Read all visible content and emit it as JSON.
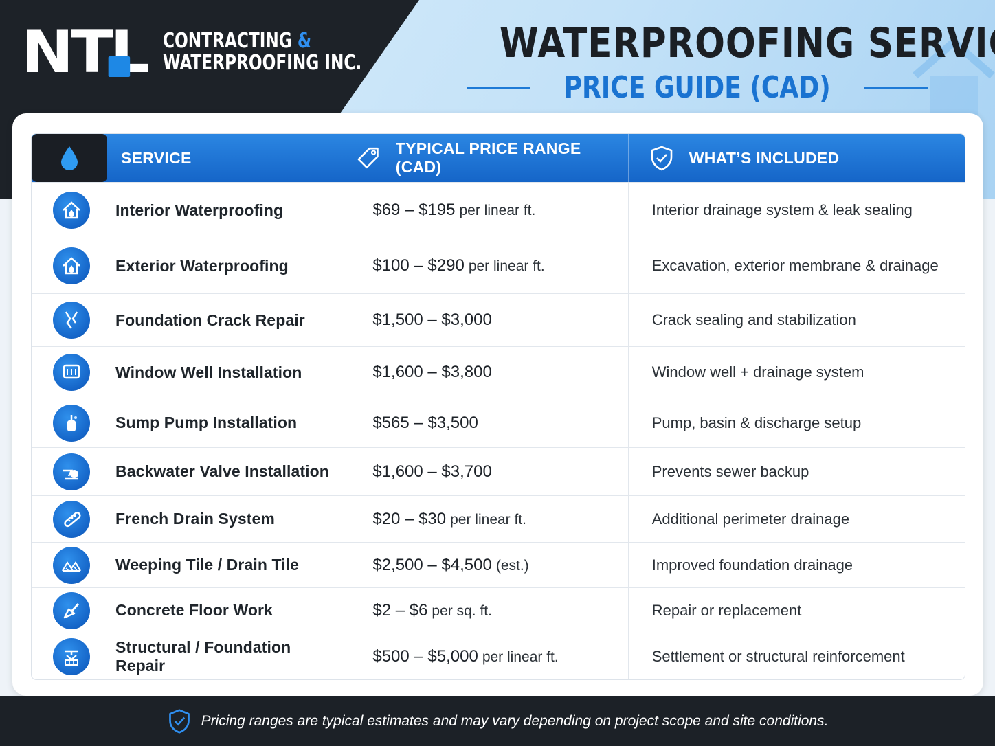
{
  "logo": {
    "mark": "NTL",
    "line1_main": "CONTRACTING",
    "line1_amp": "&",
    "line2": "WATERPROOFING INC."
  },
  "title": {
    "main": "WATERPROOFING SERVICE",
    "sub": "PRICE GUIDE (CAD)"
  },
  "table": {
    "headers": {
      "service": "SERVICE",
      "price": "TYPICAL PRICE RANGE (CAD)",
      "included": "WHAT’S INCLUDED"
    },
    "header_icons": [
      "water-drop-icon",
      "price-tag-icon",
      "shield-check-icon"
    ],
    "rows": [
      {
        "icon": "house-drop-icon",
        "service": "Interior Waterproofing",
        "price": "$69 – $195",
        "unit": "per linear ft.",
        "included": "Interior drainage system & leak sealing"
      },
      {
        "icon": "house-drop-icon",
        "service": "Exterior Waterproofing",
        "price": "$100 – $290",
        "unit": "per linear ft.",
        "included": "Excavation, exterior membrane & drainage"
      },
      {
        "icon": "crack-icon",
        "service": "Foundation Crack Repair",
        "price": "$1,500 – $3,000",
        "unit": "",
        "included": "Crack sealing and stabilization"
      },
      {
        "icon": "window-well-icon",
        "service": "Window Well Installation",
        "price": "$1,600 – $3,800",
        "unit": "",
        "included": "Window well + drainage system"
      },
      {
        "icon": "sump-pump-icon",
        "service": "Sump Pump Installation",
        "price": "$565 – $3,500",
        "unit": "",
        "included": "Pump, basin & discharge setup"
      },
      {
        "icon": "valve-icon",
        "service": "Backwater Valve Installation",
        "price": "$1,600 – $3,700",
        "unit": "",
        "included": "Prevents sewer backup"
      },
      {
        "icon": "drain-pipe-icon",
        "service": "French Drain System",
        "price": "$20 – $30",
        "unit": "per linear ft.",
        "included": "Additional perimeter drainage"
      },
      {
        "icon": "drain-tile-icon",
        "service": "Weeping Tile / Drain Tile",
        "price": "$2,500 – $4,500",
        "unit": "(est.)",
        "included": "Improved foundation drainage"
      },
      {
        "icon": "trowel-icon",
        "service": "Concrete Floor Work",
        "price": "$2 – $6",
        "unit": "per sq. ft.",
        "included": "Repair or replacement"
      },
      {
        "icon": "foundation-icon",
        "service": "Structural / Foundation Repair",
        "price": "$500 – $5,000",
        "unit": "per linear ft.",
        "included": "Settlement or structural reinforcement"
      }
    ]
  },
  "footer": {
    "icon": "shield-check-icon",
    "note": "Pricing ranges are typical estimates and may vary depending on project scope and site conditions."
  },
  "colors": {
    "accent": "#1a73d1",
    "dark": "#1d2228",
    "header_blue": "#1565c8"
  }
}
